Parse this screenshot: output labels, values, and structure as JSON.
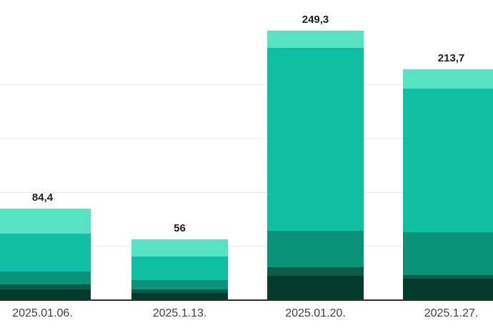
{
  "chart_data": {
    "type": "bar",
    "stacked": true,
    "title": "",
    "xlabel": "",
    "ylabel": "",
    "legend": "none",
    "grid": true,
    "ylim": [
      0,
      278
    ],
    "gridline_values": [
      50,
      100,
      150,
      200
    ],
    "categories": [
      "2025.01.06.",
      "2025.1.13.",
      "2025.01.20.",
      "2025.1.27."
    ],
    "totals": [
      84.4,
      56,
      249.3,
      213.7
    ],
    "total_labels": [
      "84,4",
      "56",
      "249,3",
      "213,7"
    ],
    "series": [
      {
        "name": "segment-1-darkest-green",
        "color": "#053a2e",
        "values": [
          10.0,
          6.6,
          22.5,
          19.8
        ]
      },
      {
        "name": "segment-2-dark-green",
        "color": "#0d5c49",
        "values": [
          4.6,
          3.3,
          7.9,
          3.3
        ]
      },
      {
        "name": "segment-3-sea-green",
        "color": "#0a9378",
        "values": [
          11.8,
          8.5,
          33.7,
          39.6
        ]
      },
      {
        "name": "segment-4-bright-teal",
        "color": "#10bfa2",
        "values": [
          35.0,
          21.8,
          169.3,
          133.2
        ]
      },
      {
        "name": "segment-5-light-mint",
        "color": "#55e3c3",
        "values": [
          23.0,
          15.8,
          15.9,
          17.8
        ]
      }
    ]
  },
  "styles": {
    "background": "#ffffff",
    "gridline_color": "#e9e9e9",
    "axis_line_color": "#2d2d2d",
    "value_label_color": "#212121",
    "x_label_color": "#3f3f3f"
  },
  "layout_note": ""
}
